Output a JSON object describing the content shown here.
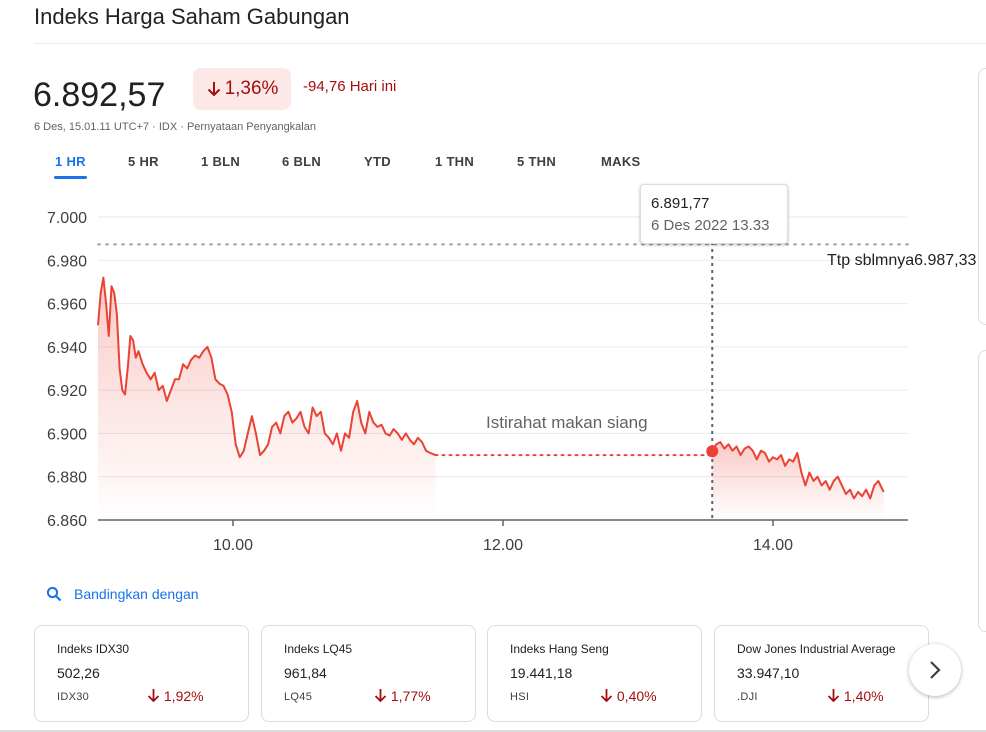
{
  "header": {
    "title": "Indeks Harga Saham Gabungan"
  },
  "quote": {
    "price": "6.892,57",
    "percent_change": "1,36%",
    "change": "-94,76 Hari ini",
    "meta": "6 Des, 15.01.11 UTC+7 · IDX · Pernyataan Penyangkalan"
  },
  "tabs": [
    "1 HR",
    "5 HR",
    "1 BLN",
    "6 BLN",
    "YTD",
    "1 THN",
    "5 THN",
    "MAKS"
  ],
  "active_tab": "1 HR",
  "tooltip": {
    "value": "6.891,77",
    "date": "6 Des 2022 13.33"
  },
  "prev_close": {
    "label": "Ttp sblmnya",
    "value": "6.987,33"
  },
  "annotation": "Istirahat makan siang",
  "compare_label": "Bandingkan dengan",
  "colors": {
    "down": "#ea4335",
    "down_text": "#a50e0e",
    "accent": "#1a73e8"
  },
  "chart_data": {
    "type": "line",
    "x_unit": "hours",
    "ylim": [
      6860,
      7000
    ],
    "xlim": [
      9.0,
      15.0
    ],
    "y_ticks": [
      {
        "value": 7000,
        "label": "7.000"
      },
      {
        "value": 6980,
        "label": "6.980"
      },
      {
        "value": 6960,
        "label": "6.960"
      },
      {
        "value": 6940,
        "label": "6.940"
      },
      {
        "value": 6920,
        "label": "6.920"
      },
      {
        "value": 6900,
        "label": "6.900"
      },
      {
        "value": 6880,
        "label": "6.880"
      },
      {
        "value": 6860,
        "label": "6.860"
      }
    ],
    "x_ticks": [
      {
        "value": 10.0,
        "label": "10.00"
      },
      {
        "value": 12.0,
        "label": "12.00"
      },
      {
        "value": 14.0,
        "label": "14.00"
      }
    ],
    "previous_close": 6987.33,
    "lunch_break": [
      11.5,
      13.5
    ],
    "hover": {
      "x": 13.55,
      "y": 6891.77
    },
    "session1": {
      "x": [
        9.0,
        9.02,
        9.04,
        9.06,
        9.08,
        9.1,
        9.12,
        9.14,
        9.16,
        9.18,
        9.2,
        9.22,
        9.24,
        9.26,
        9.28,
        9.3,
        9.33,
        9.36,
        9.39,
        9.42,
        9.45,
        9.48,
        9.51,
        9.54,
        9.57,
        9.6,
        9.63,
        9.66,
        9.69,
        9.72,
        9.75,
        9.78,
        9.81,
        9.84,
        9.87,
        9.9,
        9.93,
        9.96,
        9.99,
        10.02,
        10.05,
        10.08,
        10.11,
        10.14,
        10.17,
        10.2,
        10.23,
        10.26,
        10.29,
        10.32,
        10.35,
        10.38,
        10.41,
        10.44,
        10.47,
        10.5,
        10.53,
        10.56,
        10.59,
        10.62,
        10.65,
        10.68,
        10.71,
        10.74,
        10.77,
        10.8,
        10.83,
        10.86,
        10.89,
        10.92,
        10.95,
        10.98,
        11.01,
        11.04,
        11.07,
        11.1,
        11.13,
        11.16,
        11.19,
        11.22,
        11.25,
        11.28,
        11.31,
        11.34,
        11.37,
        11.4,
        11.43,
        11.46,
        11.5
      ],
      "y": [
        6950,
        6965,
        6972,
        6960,
        6945,
        6968,
        6965,
        6955,
        6930,
        6920,
        6918,
        6930,
        6945,
        6943,
        6935,
        6938,
        6932,
        6928,
        6925,
        6928,
        6920,
        6922,
        6915,
        6920,
        6925,
        6925,
        6932,
        6930,
        6934,
        6936,
        6935,
        6938,
        6940,
        6935,
        6925,
        6923,
        6922,
        6918,
        6910,
        6895,
        6889,
        6892,
        6900,
        6908,
        6900,
        6890,
        6892,
        6895,
        6903,
        6905,
        6900,
        6908,
        6910,
        6905,
        6907,
        6910,
        6903,
        6900,
        6912,
        6908,
        6910,
        6900,
        6898,
        6895,
        6900,
        6892,
        6900,
        6898,
        6910,
        6915,
        6905,
        6900,
        6910,
        6905,
        6903,
        6904,
        6900,
        6899,
        6902,
        6900,
        6897,
        6900,
        6897,
        6895,
        6898,
        6896,
        6892,
        6891,
        6890
      ]
    },
    "session2": {
      "x": [
        13.55,
        13.58,
        13.61,
        13.64,
        13.67,
        13.7,
        13.73,
        13.76,
        13.79,
        13.82,
        13.85,
        13.88,
        13.91,
        13.94,
        13.97,
        14.0,
        14.03,
        14.06,
        14.09,
        14.12,
        14.15,
        14.18,
        14.21,
        14.24,
        14.27,
        14.3,
        14.33,
        14.36,
        14.39,
        14.42,
        14.45,
        14.48,
        14.51,
        14.54,
        14.57,
        14.6,
        14.63,
        14.66,
        14.69,
        14.72,
        14.75,
        14.78,
        14.82
      ],
      "y": [
        6891.77,
        6895,
        6896,
        6893,
        6895,
        6892,
        6894,
        6890,
        6893,
        6894,
        6892,
        6888,
        6892,
        6891,
        6887,
        6889,
        6888,
        6890,
        6885,
        6888,
        6887,
        6891,
        6882,
        6876,
        6882,
        6878,
        6880,
        6876,
        6878,
        6874,
        6878,
        6880,
        6876,
        6872,
        6874,
        6870,
        6873,
        6871,
        6874,
        6870,
        6876,
        6878,
        6873
      ]
    }
  },
  "related": [
    {
      "name": "Indeks IDX30",
      "price": "502,26",
      "ticker": "IDX30",
      "change": "1,92%"
    },
    {
      "name": "Indeks LQ45",
      "price": "961,84",
      "ticker": "LQ45",
      "change": "1,77%"
    },
    {
      "name": "Indeks Hang Seng",
      "price": "19.441,18",
      "ticker": "HSI",
      "change": "0,40%"
    },
    {
      "name": "Dow Jones Industrial Average",
      "price": "33.947,10",
      "ticker": ".DJI",
      "change": "1,40%"
    }
  ]
}
